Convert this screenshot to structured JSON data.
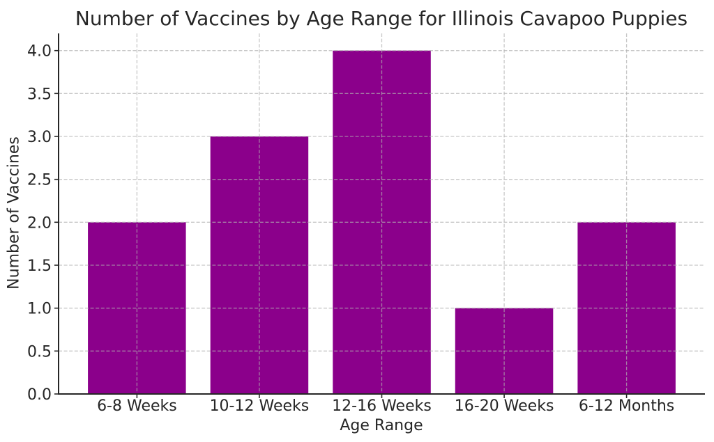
{
  "chart_data": {
    "type": "bar",
    "title": "Number of Vaccines by Age Range for Illinois Cavapoo Puppies",
    "xlabel": "Age Range",
    "ylabel": "Number of Vaccines",
    "categories": [
      "6-8 Weeks",
      "10-12 Weeks",
      "12-16 Weeks",
      "16-20 Weeks",
      "6-12 Months"
    ],
    "values": [
      2,
      3,
      4,
      1,
      2
    ],
    "ylim": [
      0,
      4.2
    ],
    "yticks": [
      0,
      0.5,
      1,
      1.5,
      2,
      2.5,
      3,
      3.5,
      4
    ],
    "ytick_labels": [
      "0.0",
      "0.5",
      "1.0",
      "1.5",
      "2.0",
      "2.5",
      "3.0",
      "3.5",
      "4.0"
    ],
    "bar_width_fraction": 0.8,
    "grid": true,
    "grid_style": "dashed",
    "legend_position": "none",
    "colors": {
      "bar": "#8B008B",
      "grid": "#b0b0b0",
      "spine": "#262626",
      "text": "#262626",
      "background": "#ffffff"
    }
  }
}
